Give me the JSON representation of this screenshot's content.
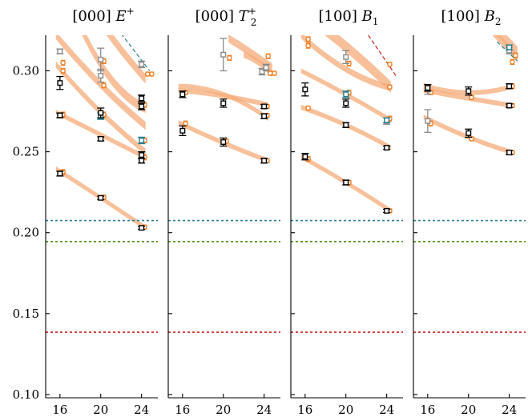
{
  "chart_data": {
    "type": "scatter",
    "panels": [
      {
        "id": "p1",
        "title": {
          "bracket": "[000]",
          "sym": "E",
          "sup": "+",
          "sub": ""
        },
        "bands": [
          {
            "x": [
              15.6,
              20,
              24.4
            ],
            "y": [
              0.2395,
              0.2215,
              0.203
            ],
            "w": 0.003
          },
          {
            "x": [
              15.6,
              20,
              24.4
            ],
            "y": [
              0.2745,
              0.2605,
              0.2465
            ],
            "w": 0.003
          },
          {
            "x": [
              15.6,
              20,
              24.4
            ],
            "y": [
              0.304,
              0.2745,
              0.25
            ],
            "w": 0.004
          },
          {
            "x": [
              15.6,
              20,
              24.4
            ],
            "y": [
              0.322,
              0.2915,
              0.266
            ],
            "w": 0.005
          },
          {
            "x": [
              17.5,
              20,
              24.4
            ],
            "y": [
              0.334,
              0.304,
              0.277
            ],
            "w": 0.006
          },
          {
            "x": [
              20,
              22,
              24.4
            ],
            "y": [
              0.33,
              0.313,
              0.295
            ],
            "w": 0.006
          }
        ],
        "pred_points": [
          {
            "x": 16.3,
            "y": 0.2375,
            "e": 0.0015
          },
          {
            "x": 20.3,
            "y": 0.222,
            "e": 0.0012
          },
          {
            "x": 24.3,
            "y": 0.2035,
            "e": 0.0012
          },
          {
            "x": 16.3,
            "y": 0.273,
            "e": 0.0015
          },
          {
            "x": 20.3,
            "y": 0.273,
            "e": 0.0015
          },
          {
            "x": 24.3,
            "y": 0.2465,
            "e": 0.0015
          },
          {
            "x": 16.3,
            "y": 0.3,
            "e": 0.0015
          },
          {
            "x": 20.3,
            "y": 0.291,
            "e": 0.0015
          },
          {
            "x": 24.3,
            "y": 0.257,
            "e": 0.0015
          },
          {
            "x": 16.3,
            "y": 0.305,
            "e": 0.0015
          },
          {
            "x": 20.3,
            "y": 0.306,
            "e": 0.0015
          },
          {
            "x": 24.3,
            "y": 0.279,
            "e": 0.0015
          },
          {
            "x": 24.6,
            "y": 0.298,
            "e": 0.0012
          },
          {
            "x": 25.0,
            "y": 0.298,
            "e": 0.0012
          }
        ],
        "black_points": [
          {
            "x": 16,
            "y": 0.2365,
            "e": 0.0015
          },
          {
            "x": 16,
            "y": 0.2725,
            "e": 0.0015
          },
          {
            "x": 16,
            "y": 0.2925,
            "e": 0.004
          },
          {
            "x": 20,
            "y": 0.2215,
            "e": 0.001
          },
          {
            "x": 20,
            "y": 0.258,
            "e": 0.0012
          },
          {
            "x": 20,
            "y": 0.274,
            "e": 0.003
          },
          {
            "x": 24,
            "y": 0.203,
            "e": 0.001
          },
          {
            "x": 24,
            "y": 0.2445,
            "e": 0.0015
          },
          {
            "x": 24,
            "y": 0.248,
            "e": 0.002
          },
          {
            "x": 24,
            "y": 0.278,
            "e": 0.002
          },
          {
            "x": 24,
            "y": 0.283,
            "e": 0.002
          }
        ],
        "grey_points": [
          {
            "x": 16,
            "y": 0.312,
            "e": 0.0015
          },
          {
            "x": 20,
            "y": 0.297,
            "e": 0.004
          },
          {
            "x": 20,
            "y": 0.307,
            "e": 0.007
          },
          {
            "x": 24,
            "y": 0.304,
            "e": 0.002
          }
        ],
        "teal_points": [
          {
            "x": 20,
            "y": 0.272,
            "e": 0.002
          },
          {
            "x": 24,
            "y": 0.257,
            "e": 0.002
          }
        ],
        "dashed_lines": [
          {
            "x": [
              22,
              24.8
            ],
            "y": [
              0.323,
              0.3
            ]
          }
        ]
      },
      {
        "id": "p2",
        "title": {
          "bracket": "[000]",
          "sym": "T",
          "sup": "+",
          "sub": "2"
        },
        "bands": [
          {
            "x": [
              15.6,
              20,
              24.4
            ],
            "y": [
              0.268,
              0.2555,
              0.2445
            ],
            "w": 0.003
          },
          {
            "x": [
              15.6,
              20,
              24.4
            ],
            "y": [
              0.288,
              0.2845,
              0.279
            ],
            "w": 0.003
          },
          {
            "x": [
              15.6,
              20,
              24.4
            ],
            "y": [
              0.2905,
              0.2855,
              0.2705
            ],
            "w": 0.003
          },
          {
            "x": [
              20.5,
              22.5,
              24.8
            ],
            "y": [
              0.32,
              0.312,
              0.302
            ],
            "w": 0.005
          },
          {
            "x": [
              22,
              23.5,
              24.8
            ],
            "y": [
              0.31,
              0.305,
              0.298
            ],
            "w": 0.004
          }
        ],
        "pred_points": [
          {
            "x": 16.3,
            "y": 0.2675,
            "e": 0.0015
          },
          {
            "x": 20.3,
            "y": 0.2565,
            "e": 0.0012
          },
          {
            "x": 24.3,
            "y": 0.2445,
            "e": 0.0012
          },
          {
            "x": 16.3,
            "y": 0.2865,
            "e": 0.0012
          },
          {
            "x": 24.3,
            "y": 0.278,
            "e": 0.0012
          },
          {
            "x": 24.3,
            "y": 0.2725,
            "e": 0.0012
          },
          {
            "x": 20.6,
            "y": 0.308,
            "e": 0.0015
          },
          {
            "x": 24.4,
            "y": 0.309,
            "e": 0.0015
          },
          {
            "x": 24.6,
            "y": 0.2985,
            "e": 0.0012
          },
          {
            "x": 25.0,
            "y": 0.2985,
            "e": 0.0012
          }
        ],
        "black_points": [
          {
            "x": 16,
            "y": 0.263,
            "e": 0.003
          },
          {
            "x": 16,
            "y": 0.2855,
            "e": 0.002
          },
          {
            "x": 20,
            "y": 0.256,
            "e": 0.0025
          },
          {
            "x": 20,
            "y": 0.28,
            "e": 0.0025
          },
          {
            "x": 24,
            "y": 0.2445,
            "e": 0.0015
          },
          {
            "x": 24,
            "y": 0.272,
            "e": 0.0015
          },
          {
            "x": 24,
            "y": 0.278,
            "e": 0.0012
          }
        ],
        "grey_points": [
          {
            "x": 20,
            "y": 0.31,
            "e": 0.01
          },
          {
            "x": 23.8,
            "y": 0.2995,
            "e": 0.002
          },
          {
            "x": 24.2,
            "y": 0.302,
            "e": 0.002
          }
        ],
        "teal_points": [],
        "dashed_lines": []
      },
      {
        "id": "p3",
        "title": {
          "bracket": "[100]",
          "sym": "B",
          "sup": "",
          "sub": "1"
        },
        "bands": [
          {
            "x": [
              15.6,
              20,
              24.4
            ],
            "y": [
              0.247,
              0.231,
              0.2135
            ],
            "w": 0.003
          },
          {
            "x": [
              15.6,
              20,
              24.4
            ],
            "y": [
              0.2775,
              0.2665,
              0.2525
            ],
            "w": 0.003
          },
          {
            "x": [
              15.6,
              20,
              24.4
            ],
            "y": [
              0.3,
              0.2855,
              0.2695
            ],
            "w": 0.003
          },
          {
            "x": [
              15.6,
              20,
              24.4
            ],
            "y": [
              0.322,
              0.301,
              0.2895
            ],
            "w": 0.004
          },
          {
            "x": [
              15.6,
              20,
              24.4
            ],
            "y": [
              0.336,
              0.315,
              0.29
            ],
            "w": 0.007
          }
        ],
        "pred_points": [
          {
            "x": 16.3,
            "y": 0.2455,
            "e": 0.0015
          },
          {
            "x": 20.3,
            "y": 0.231,
            "e": 0.0012
          },
          {
            "x": 24.3,
            "y": 0.2135,
            "e": 0.0012
          },
          {
            "x": 16.3,
            "y": 0.277,
            "e": 0.0012
          },
          {
            "x": 20.3,
            "y": 0.2865,
            "e": 0.0015
          },
          {
            "x": 24.3,
            "y": 0.2705,
            "e": 0.0015
          },
          {
            "x": 16.3,
            "y": 0.3195,
            "e": 0.0015
          },
          {
            "x": 20.3,
            "y": 0.3045,
            "e": 0.0015
          },
          {
            "x": 24.3,
            "y": 0.304,
            "e": 0.0012
          },
          {
            "x": 16.3,
            "y": 0.3155,
            "e": 0.0015
          },
          {
            "x": 24.3,
            "y": 0.29,
            "e": 0.0012
          }
        ],
        "black_points": [
          {
            "x": 16,
            "y": 0.247,
            "e": 0.002
          },
          {
            "x": 16,
            "y": 0.2885,
            "e": 0.004
          },
          {
            "x": 20,
            "y": 0.231,
            "e": 0.0015
          },
          {
            "x": 20,
            "y": 0.2665,
            "e": 0.0015
          },
          {
            "x": 20,
            "y": 0.28,
            "e": 0.0025
          },
          {
            "x": 24,
            "y": 0.2135,
            "e": 0.001
          },
          {
            "x": 24,
            "y": 0.2525,
            "e": 0.001
          }
        ],
        "grey_points": [
          {
            "x": 20,
            "y": 0.3085,
            "e": 0.004
          },
          {
            "x": 24,
            "y": 0.269,
            "e": 0.002
          }
        ],
        "teal_points": [
          {
            "x": 20,
            "y": 0.2855,
            "e": 0.002
          },
          {
            "x": 24,
            "y": 0.2695,
            "e": 0.0015
          }
        ],
        "dashed_lines": [
          {
            "x": [
              22.2,
              24.9
            ],
            "y": [
              0.322,
              0.297
            ]
          }
        ]
      },
      {
        "id": "p4",
        "title": {
          "bracket": "[100]",
          "sym": "B",
          "sup": "",
          "sub": "2"
        },
        "bands": [
          {
            "x": [
              15.6,
              20,
              24.4
            ],
            "y": [
              0.2715,
              0.259,
              0.2495
            ],
            "w": 0.003
          },
          {
            "x": [
              15.6,
              20,
              24.4
            ],
            "y": [
              0.288,
              0.283,
              0.2785
            ],
            "w": 0.003
          },
          {
            "x": [
              15.6,
              20,
              24.4
            ],
            "y": [
              0.291,
              0.2865,
              0.2905
            ],
            "w": 0.003
          },
          {
            "x": [
              21.5,
              23,
              24.8
            ],
            "y": [
              0.33,
              0.32,
              0.308
            ],
            "w": 0.005
          },
          {
            "x": [
              20,
              22.5,
              24.8
            ],
            "y": [
              0.336,
              0.326,
              0.312
            ],
            "w": 0.006
          }
        ],
        "pred_points": [
          {
            "x": 16.3,
            "y": 0.2675,
            "e": 0.0015
          },
          {
            "x": 20.3,
            "y": 0.258,
            "e": 0.0012
          },
          {
            "x": 24.3,
            "y": 0.2495,
            "e": 0.0012
          },
          {
            "x": 16.3,
            "y": 0.2865,
            "e": 0.0012
          },
          {
            "x": 20.3,
            "y": 0.2835,
            "e": 0.0012
          },
          {
            "x": 24.3,
            "y": 0.2785,
            "e": 0.0012
          },
          {
            "x": 24.3,
            "y": 0.2905,
            "e": 0.0015
          },
          {
            "x": 24.3,
            "y": 0.3055,
            "e": 0.0015
          },
          {
            "x": 24.6,
            "y": 0.3095,
            "e": 0.0015
          }
        ],
        "black_points": [
          {
            "x": 16,
            "y": 0.2895,
            "e": 0.002
          },
          {
            "x": 20,
            "y": 0.2615,
            "e": 0.0025
          },
          {
            "x": 20,
            "y": 0.2875,
            "e": 0.0025
          },
          {
            "x": 24,
            "y": 0.2495,
            "e": 0.0012
          },
          {
            "x": 24,
            "y": 0.2785,
            "e": 0.001
          },
          {
            "x": 24,
            "y": 0.2905,
            "e": 0.0015
          }
        ],
        "grey_points": [
          {
            "x": 16,
            "y": 0.269,
            "e": 0.007
          },
          {
            "x": 16,
            "y": 0.2885,
            "e": 0.003
          },
          {
            "x": 24,
            "y": 0.3125,
            "e": 0.002
          }
        ],
        "teal_points": [
          {
            "x": 24,
            "y": 0.3145,
            "e": 0.0015
          }
        ],
        "dashed_lines": [
          {
            "x": [
              22.8,
              24.8
            ],
            "y": [
              0.318,
              0.306
            ]
          }
        ]
      }
    ],
    "thresholds": [
      {
        "y": 0.2075,
        "color": "#2b7f8f"
      },
      {
        "y": 0.1945,
        "color": "#4e8c1b"
      },
      {
        "y": 0.1385,
        "color": "#c8201e"
      }
    ],
    "xlim": [
      14.6,
      25.6
    ],
    "ylim": [
      0.098,
      0.322
    ],
    "x_ticks": [
      16,
      20,
      24
    ],
    "x_tick_labels": [
      "16",
      "20",
      "24"
    ],
    "y_ticks": [
      0.1,
      0.15,
      0.2,
      0.25,
      0.3
    ],
    "y_tick_labels": [
      "0.10",
      "0.15",
      "0.20",
      "0.25",
      "0.30"
    ],
    "colors": {
      "band": "#f5ab78",
      "orange": "#f07f26",
      "black": "#000000",
      "grey": "#8a8a8a",
      "teal": "#2b7f8f",
      "dash_red": "#c8201e",
      "dash_teal": "#2b7f8f"
    }
  }
}
